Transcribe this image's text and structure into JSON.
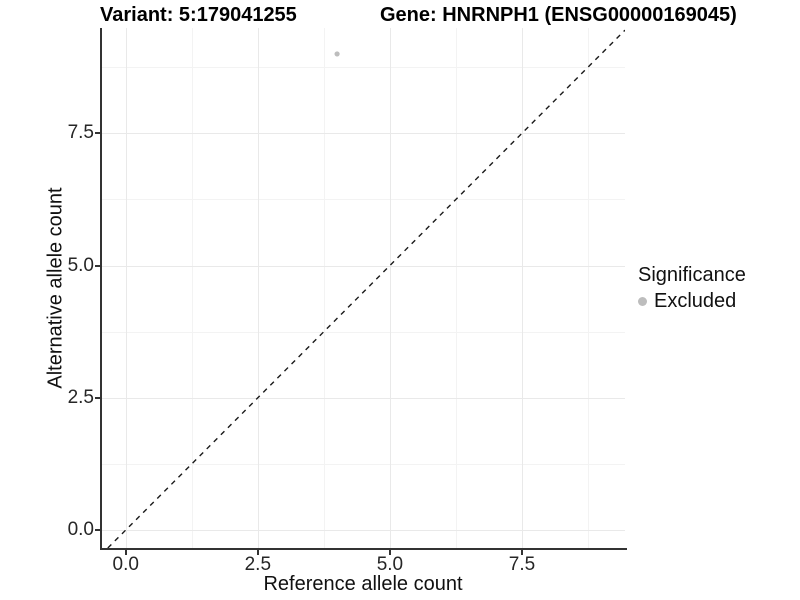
{
  "titles": {
    "variant": "Variant: 5:179041255",
    "gene": "Gene: HNRNPH1 (ENSG00000169045)"
  },
  "axes": {
    "x": {
      "label": "Reference allele count",
      "tick_labels": [
        "0.0",
        "2.5",
        "5.0",
        "7.5"
      ]
    },
    "y": {
      "label": "Alternative allele count",
      "tick_labels": [
        "0.0",
        "2.5",
        "5.0",
        "7.5"
      ]
    }
  },
  "legend": {
    "title": "Significance",
    "items": [
      {
        "label": "Excluded",
        "color": "#bdbdbd"
      }
    ]
  },
  "chart_data": {
    "type": "scatter",
    "title": "Variant: 5:179041255   Gene: HNRNPH1 (ENSG00000169045)",
    "xlabel": "Reference allele count",
    "ylabel": "Alternative allele count",
    "xlim": [
      -0.45,
      9.45
    ],
    "ylim": [
      -0.34,
      9.49
    ],
    "x_ticks": [
      0,
      2.5,
      5,
      7.5
    ],
    "y_ticks": [
      0,
      2.5,
      5,
      7.5
    ],
    "x_minor_ticks": [
      1.25,
      3.75,
      6.25,
      8.75
    ],
    "y_minor_ticks": [
      1.25,
      3.75,
      6.25,
      8.75
    ],
    "grid": true,
    "legend_position": "right",
    "series": [
      {
        "name": "Excluded",
        "color": "#bdbdbd",
        "points": [
          {
            "x": 4,
            "y": 9
          }
        ]
      }
    ],
    "reference_line": {
      "kind": "identity y = x",
      "style": "dashed",
      "color": "#1a1a1a"
    }
  }
}
